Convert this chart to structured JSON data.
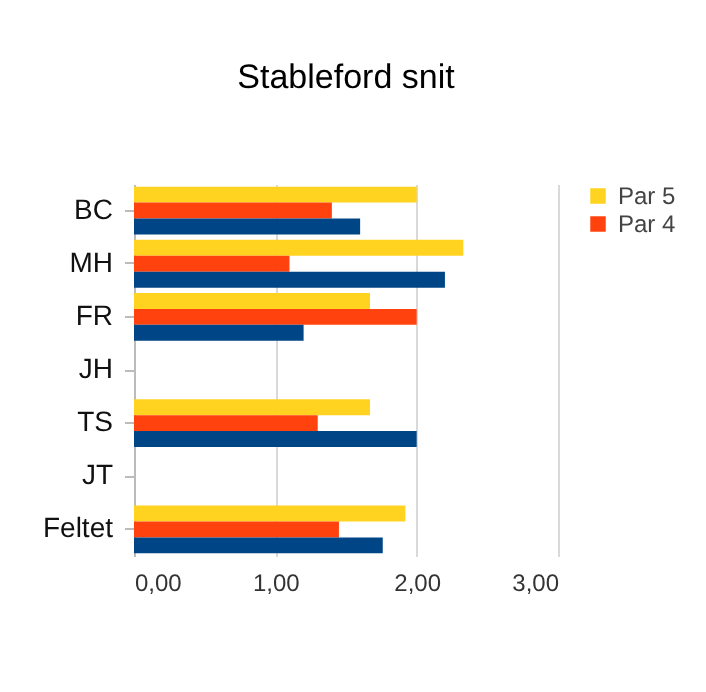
{
  "chart_data": {
    "type": "bar",
    "orientation": "horizontal",
    "title": "Stableford snit",
    "categories": [
      "BC",
      "MH",
      "FR",
      "JH",
      "TS",
      "JT",
      "Feltet"
    ],
    "series": [
      {
        "name": "Par 5",
        "color": "#ffd320",
        "values": [
          2.0,
          2.33,
          1.67,
          null,
          1.67,
          null,
          1.92
        ]
      },
      {
        "name": "Par 4",
        "color": "#ff420e",
        "values": [
          1.4,
          1.1,
          2.0,
          null,
          1.3,
          null,
          1.45
        ]
      },
      {
        "color": "#004586",
        "values": [
          1.6,
          2.2,
          1.2,
          null,
          2.0,
          null,
          1.76
        ]
      }
    ],
    "xlim": [
      0,
      3
    ],
    "xticks": [
      {
        "value": 0,
        "label": "0,00"
      },
      {
        "value": 1,
        "label": "1,00"
      },
      {
        "value": 2,
        "label": "2,00"
      },
      {
        "value": 3,
        "label": "3,00"
      }
    ],
    "grid": "x",
    "legend": "right"
  }
}
